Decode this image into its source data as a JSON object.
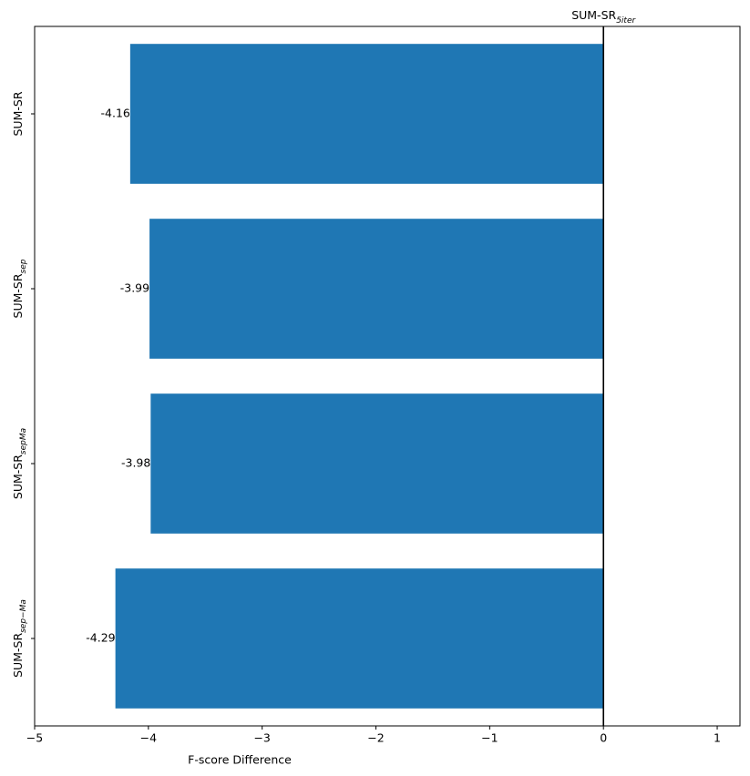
{
  "chart_data": {
    "type": "barh",
    "categories": [
      [
        "SUM-SR"
      ],
      [
        "SUM-SR",
        "sep"
      ],
      [
        "SUM-SR",
        "sepMa"
      ],
      [
        "SUM-SR",
        "sep−Ma"
      ]
    ],
    "values": [
      -4.16,
      -3.99,
      -3.98,
      -4.29
    ],
    "color": "#1f77b4",
    "xlabel": "F-score Difference",
    "xlim": [
      -5,
      1.2
    ],
    "xticks": [
      {
        "value": -5,
        "label": "−5"
      },
      {
        "value": -4,
        "label": "−4"
      },
      {
        "value": -3,
        "label": "−3"
      },
      {
        "value": -2,
        "label": "−2"
      },
      {
        "value": -1,
        "label": "−1"
      },
      0,
      1
    ],
    "reference_line": {
      "value": 0,
      "label": [
        "SUM-SR",
        "5iter"
      ],
      "color": "#000000"
    }
  }
}
